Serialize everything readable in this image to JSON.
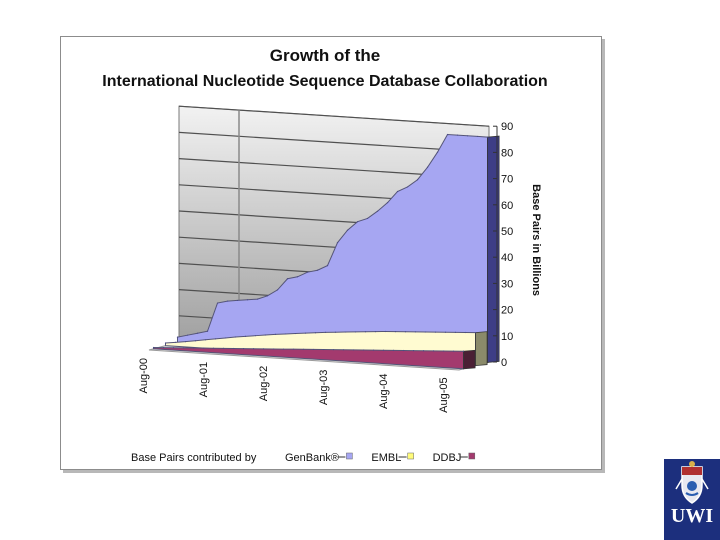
{
  "chart_data": {
    "type": "area",
    "title_lines": [
      "Growth of the",
      "International Nucleotide Sequence Database Collaboration"
    ],
    "ylabel": "Base Pairs in Billions",
    "ylim": [
      0,
      90
    ],
    "yticks": [
      0,
      10,
      20,
      30,
      40,
      50,
      60,
      70,
      80,
      90
    ],
    "categories": [
      "Aug-00",
      "Aug-01",
      "Aug-02",
      "Aug-03",
      "Aug-04",
      "Aug-05"
    ],
    "x": [
      0,
      2,
      4,
      6,
      8,
      10,
      12,
      14,
      16,
      18,
      20,
      22,
      24,
      26,
      28,
      30,
      32,
      34,
      36,
      38,
      40,
      42,
      44,
      46,
      48,
      50,
      52,
      54,
      56,
      58,
      60,
      62
    ],
    "series": [
      {
        "name": "DDBJ",
        "color": "#a33a6e",
        "values": [
          0.5,
          0.7,
          0.9,
          1.1,
          1.3,
          1.5,
          1.7,
          1.9,
          2.1,
          2.3,
          2.5,
          2.7,
          2.9,
          3.1,
          3.3,
          3.5,
          3.7,
          3.9,
          4.1,
          4.3,
          4.5,
          4.7,
          4.9,
          5.1,
          5.3,
          5.5,
          5.7,
          5.9,
          6.1,
          6.3,
          6.5,
          6.7
        ]
      },
      {
        "name": "EMBL",
        "color": "#fffbd1",
        "values": [
          1,
          1.5,
          2,
          2.6,
          3.2,
          3.8,
          4.4,
          5,
          5.5,
          6,
          6.5,
          7,
          7.4,
          7.8,
          8.2,
          8.6,
          9,
          9.3,
          9.6,
          9.9,
          10.2,
          10.5,
          10.8,
          11,
          11.2,
          11.4,
          11.6,
          11.8,
          12,
          12.2,
          12.4,
          12.6
        ]
      },
      {
        "name": "GenBank®",
        "color": "#a6a6f2",
        "values": [
          2,
          3,
          4,
          5,
          16,
          17,
          17.5,
          18,
          18.5,
          20,
          22.5,
          27,
          28,
          30,
          31,
          33,
          42,
          47,
          50.5,
          52,
          55,
          58.5,
          63,
          65,
          68,
          73,
          79,
          86,
          86,
          86,
          86,
          86
        ]
      }
    ],
    "legend": {
      "prefix": "Base Pairs contributed by",
      "entries": [
        "GenBank®",
        "EMBL",
        "DDBJ"
      ],
      "marker_colors": [
        "#a6a6f2",
        "#fffb7a",
        "#a33a6e"
      ],
      "placement": "bottom"
    },
    "grid": true
  }
}
